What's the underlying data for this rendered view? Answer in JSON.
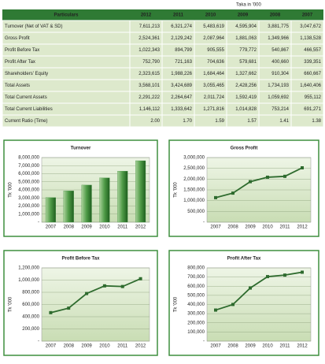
{
  "table": {
    "note": "Taka in '000",
    "header": [
      "Particulars",
      "2012",
      "2011",
      "2010",
      "2009",
      "2008",
      "2007"
    ],
    "rows": [
      [
        "Turnover (Net of VAT & SD)",
        "7,611,213",
        "6,321,274",
        "5,483,619",
        "4,595,904",
        "3,881,775",
        "3,047,672"
      ],
      [
        "Gross Profit",
        "2,524,361",
        "2,129,242",
        "2,087,964",
        "1,881,063",
        "1,349,966",
        "1,138,528"
      ],
      [
        "Profit Before Tax",
        "1,022,343",
        "894,799",
        "905,555",
        "779,772",
        "540,867",
        "466,557"
      ],
      [
        "Profit After Tax",
        "752,790",
        "721,163",
        "704,636",
        "579,681",
        "400,660",
        "339,351"
      ],
      [
        "Shareholders' Equity",
        "2,323,615",
        "1,988,226",
        "1,684,464",
        "1,327,662",
        "910,304",
        "660,667"
      ],
      [
        "Total Assets",
        "3,568,101",
        "3,424,689",
        "3,055,465",
        "2,428,256",
        "1,734,193",
        "1,640,406"
      ],
      [
        "Total Current Assets",
        "2,291,222",
        "2,264,647",
        "2,011,724",
        "1,592,419",
        "1,059,692",
        "955,112"
      ],
      [
        "Total Current Liabilities",
        "1,146,112",
        "1,333,642",
        "1,271,816",
        "1,014,828",
        "753,214",
        "691,271"
      ],
      [
        "Current Ratio (Time)",
        "2.00",
        "1.70",
        "1.59",
        "1.57",
        "1.41",
        "1.38"
      ]
    ]
  },
  "chart_data": [
    {
      "type": "bar",
      "title": "Turnover",
      "y_label": "Tk '000",
      "color": "#3f8f3f",
      "categories": [
        "2007",
        "2008",
        "2009",
        "2010",
        "2011",
        "2012"
      ],
      "values": [
        3047672,
        3881775,
        4595904,
        5483619,
        6321274,
        7611213
      ],
      "ylim": [
        0,
        8000000
      ],
      "yticks": [
        {
          "value": 0,
          "label": "-"
        },
        {
          "value": 1000000,
          "label": "1,000,000"
        },
        {
          "value": 2000000,
          "label": "2,000,000"
        },
        {
          "value": 3000000,
          "label": "3,000,000"
        },
        {
          "value": 4000000,
          "label": "4,000,000"
        },
        {
          "value": 5000000,
          "label": "5,000,000"
        },
        {
          "value": 6000000,
          "label": "6,000,000"
        },
        {
          "value": 7000000,
          "label": "7,000,000"
        },
        {
          "value": 8000000,
          "label": "8,000,000"
        }
      ],
      "grid": true
    },
    {
      "type": "line",
      "title": "Gross Profit",
      "y_label": "Tk '000",
      "color": "#2e6b2e",
      "categories": [
        "2007",
        "2008",
        "2009",
        "2010",
        "2011",
        "2012"
      ],
      "values": [
        1138528,
        1349966,
        1881063,
        2087964,
        2129242,
        2524361
      ],
      "ylim": [
        0,
        3000000
      ],
      "yticks": [
        {
          "value": 0,
          "label": "-"
        },
        {
          "value": 500000,
          "label": "500,000"
        },
        {
          "value": 1000000,
          "label": "1,000,000"
        },
        {
          "value": 1500000,
          "label": "1,500,000"
        },
        {
          "value": 2000000,
          "label": "2,000,000"
        },
        {
          "value": 2500000,
          "label": "2,500,000"
        },
        {
          "value": 3000000,
          "label": "3,000,000"
        }
      ],
      "grid": true
    },
    {
      "type": "line",
      "title": "Profit Before Tax",
      "y_label": "Tk '000",
      "color": "#2e6b2e",
      "categories": [
        "2007",
        "2008",
        "2009",
        "2010",
        "2011",
        "2012"
      ],
      "values": [
        466557,
        540867,
        779772,
        905555,
        894799,
        1022343
      ],
      "ylim": [
        0,
        1200000
      ],
      "yticks": [
        {
          "value": 0,
          "label": "-"
        },
        {
          "value": 200000,
          "label": "200,000"
        },
        {
          "value": 400000,
          "label": "400,000"
        },
        {
          "value": 600000,
          "label": "600,000"
        },
        {
          "value": 800000,
          "label": "800,000"
        },
        {
          "value": 1000000,
          "label": "1,000,000"
        },
        {
          "value": 1200000,
          "label": "1,200,000"
        }
      ],
      "grid": true
    },
    {
      "type": "line",
      "title": "Profit After Tax",
      "y_label": "Tk '000",
      "color": "#2e6b2e",
      "categories": [
        "2007",
        "2008",
        "2009",
        "2010",
        "2011",
        "2012"
      ],
      "values": [
        339351,
        400660,
        579681,
        704636,
        721163,
        752790
      ],
      "ylim": [
        0,
        800000
      ],
      "yticks": [
        {
          "value": 0,
          "label": "-"
        },
        {
          "value": 100000,
          "label": "100,000"
        },
        {
          "value": 200000,
          "label": "200,000"
        },
        {
          "value": 300000,
          "label": "300,000"
        },
        {
          "value": 400000,
          "label": "400,000"
        },
        {
          "value": 500000,
          "label": "500,000"
        },
        {
          "value": 600000,
          "label": "600,000"
        },
        {
          "value": 700000,
          "label": "700,000"
        },
        {
          "value": 800000,
          "label": "800,000"
        }
      ],
      "grid": true
    }
  ]
}
